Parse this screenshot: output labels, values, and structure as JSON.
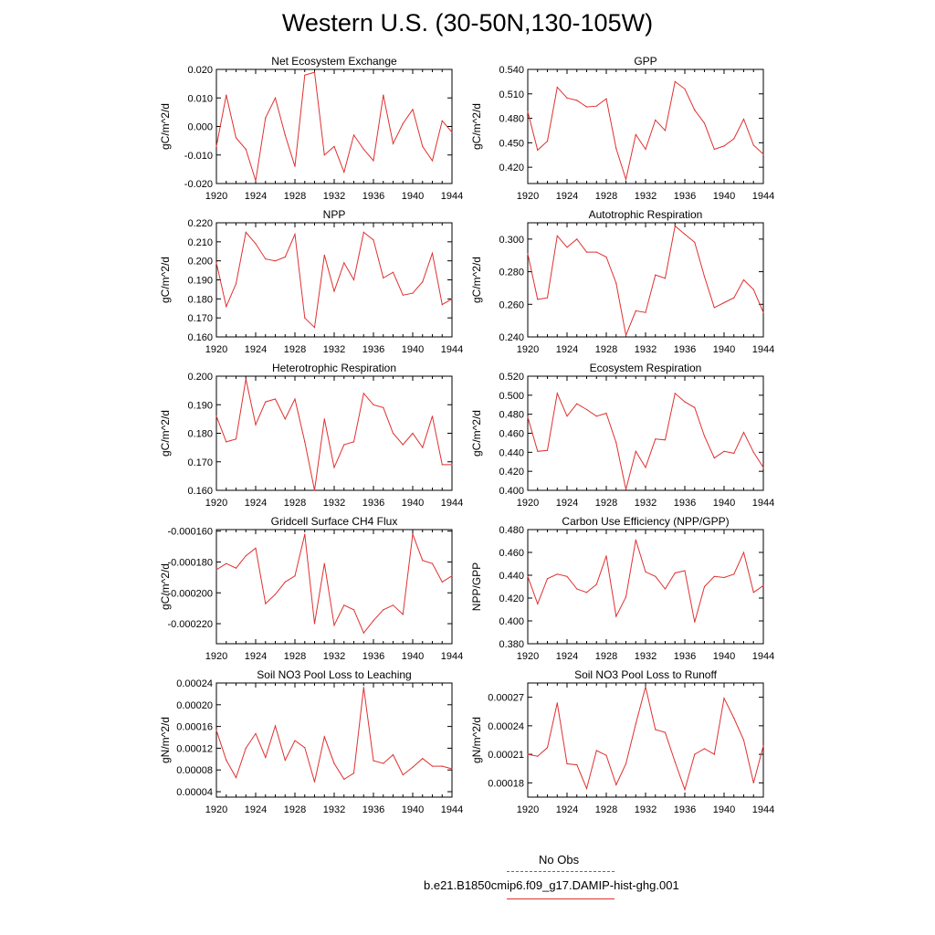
{
  "figure": {
    "title": "Western U.S. (30-50N,130-105W)"
  },
  "legend": {
    "entries": [
      {
        "label": "No Obs",
        "color": "#5a5ae0",
        "style": "dashed"
      },
      {
        "label": "b.e21.B1850cmip6.f09_g17.DAMIP-hist-ghg.001",
        "color": "#e03030",
        "style": "solid"
      }
    ]
  },
  "chart_data": [
    {
      "type": "line",
      "title": "Net Ecosystem Exchange",
      "ylabel": "gC/m^2/d",
      "xlim": [
        1920,
        1944
      ],
      "ylim": [
        -0.02,
        0.02
      ],
      "xticks": [
        "1920",
        "1924",
        "1928",
        "1932",
        "1936",
        "1940",
        "1944"
      ],
      "yticks": [
        {
          "v": 0.02,
          "t": "0.020"
        },
        {
          "v": 0.01,
          "t": "0.010"
        },
        {
          "v": 0.0,
          "t": "0.000"
        },
        {
          "v": -0.01,
          "t": "-0.010"
        },
        {
          "v": -0.02,
          "t": "-0.020"
        }
      ],
      "x": [
        1920,
        1921,
        1922,
        1923,
        1924,
        1925,
        1926,
        1927,
        1928,
        1929,
        1930,
        1931,
        1932,
        1933,
        1934,
        1935,
        1936,
        1937,
        1938,
        1939,
        1940,
        1941,
        1942,
        1943,
        1944
      ],
      "series": [
        {
          "color": "#e03030",
          "values": [
            -0.007,
            0.011,
            -0.004,
            -0.008,
            -0.019,
            0.003,
            0.01,
            -0.003,
            -0.014,
            0.018,
            0.019,
            -0.01,
            -0.007,
            -0.016,
            -0.003,
            -0.008,
            -0.012,
            0.011,
            -0.006,
            0.001,
            0.006,
            -0.007,
            -0.012,
            0.002,
            -0.002
          ]
        }
      ]
    },
    {
      "type": "line",
      "title": "GPP",
      "ylabel": "gC/m^2/d",
      "xlim": [
        1920,
        1944
      ],
      "ylim": [
        0.4,
        0.54
      ],
      "xticks": [
        "1920",
        "1924",
        "1928",
        "1932",
        "1936",
        "1940",
        "1944"
      ],
      "yticks": [
        {
          "v": 0.54,
          "t": "0.540"
        },
        {
          "v": 0.51,
          "t": "0.510"
        },
        {
          "v": 0.48,
          "t": "0.480"
        },
        {
          "v": 0.45,
          "t": "0.450"
        },
        {
          "v": 0.42,
          "t": "0.420"
        }
      ],
      "x": [
        1920,
        1921,
        1922,
        1923,
        1924,
        1925,
        1926,
        1927,
        1928,
        1929,
        1930,
        1931,
        1932,
        1933,
        1934,
        1935,
        1936,
        1937,
        1938,
        1939,
        1940,
        1941,
        1942,
        1943,
        1944
      ],
      "series": [
        {
          "color": "#e03030",
          "values": [
            0.488,
            0.441,
            0.452,
            0.518,
            0.505,
            0.502,
            0.494,
            0.495,
            0.504,
            0.443,
            0.405,
            0.46,
            0.442,
            0.478,
            0.465,
            0.525,
            0.516,
            0.49,
            0.474,
            0.442,
            0.446,
            0.455,
            0.479,
            0.447,
            0.436
          ]
        }
      ]
    },
    {
      "type": "line",
      "title": "NPP",
      "ylabel": "gC/m^2/d",
      "xlim": [
        1920,
        1944
      ],
      "ylim": [
        0.16,
        0.22
      ],
      "xticks": [
        "1920",
        "1924",
        "1928",
        "1932",
        "1936",
        "1940",
        "1944"
      ],
      "yticks": [
        {
          "v": 0.22,
          "t": "0.220"
        },
        {
          "v": 0.21,
          "t": "0.210"
        },
        {
          "v": 0.2,
          "t": "0.200"
        },
        {
          "v": 0.19,
          "t": "0.190"
        },
        {
          "v": 0.18,
          "t": "0.180"
        },
        {
          "v": 0.17,
          "t": "0.170"
        },
        {
          "v": 0.16,
          "t": "0.160"
        }
      ],
      "x": [
        1920,
        1921,
        1922,
        1923,
        1924,
        1925,
        1926,
        1927,
        1928,
        1929,
        1930,
        1931,
        1932,
        1933,
        1934,
        1935,
        1936,
        1937,
        1938,
        1939,
        1940,
        1941,
        1942,
        1943,
        1944
      ],
      "series": [
        {
          "color": "#e03030",
          "values": [
            0.199,
            0.176,
            0.188,
            0.215,
            0.209,
            0.201,
            0.2,
            0.202,
            0.214,
            0.17,
            0.165,
            0.203,
            0.184,
            0.199,
            0.19,
            0.215,
            0.211,
            0.191,
            0.194,
            0.182,
            0.183,
            0.189,
            0.204,
            0.177,
            0.18
          ]
        }
      ]
    },
    {
      "type": "line",
      "title": "Autotrophic Respiration",
      "ylabel": "gC/m^2/d",
      "xlim": [
        1920,
        1944
      ],
      "ylim": [
        0.24,
        0.31
      ],
      "xticks": [
        "1920",
        "1924",
        "1928",
        "1932",
        "1936",
        "1940",
        "1944"
      ],
      "yticks": [
        {
          "v": 0.3,
          "t": "0.300"
        },
        {
          "v": 0.28,
          "t": "0.280"
        },
        {
          "v": 0.26,
          "t": "0.260"
        },
        {
          "v": 0.24,
          "t": "0.240"
        }
      ],
      "x": [
        1920,
        1921,
        1922,
        1923,
        1924,
        1925,
        1926,
        1927,
        1928,
        1929,
        1930,
        1931,
        1932,
        1933,
        1934,
        1935,
        1936,
        1937,
        1938,
        1939,
        1940,
        1941,
        1942,
        1943,
        1944
      ],
      "series": [
        {
          "color": "#e03030",
          "values": [
            0.291,
            0.263,
            0.264,
            0.302,
            0.295,
            0.3,
            0.292,
            0.292,
            0.289,
            0.273,
            0.241,
            0.256,
            0.255,
            0.278,
            0.276,
            0.308,
            0.303,
            0.298,
            0.277,
            0.258,
            0.261,
            0.264,
            0.275,
            0.269,
            0.255
          ]
        }
      ]
    },
    {
      "type": "line",
      "title": "Heterotrophic Respiration",
      "ylabel": "gC/m^2/d",
      "xlim": [
        1920,
        1944
      ],
      "ylim": [
        0.16,
        0.2
      ],
      "xticks": [
        "1920",
        "1924",
        "1928",
        "1932",
        "1936",
        "1940",
        "1944"
      ],
      "yticks": [
        {
          "v": 0.2,
          "t": "0.200"
        },
        {
          "v": 0.19,
          "t": "0.190"
        },
        {
          "v": 0.18,
          "t": "0.180"
        },
        {
          "v": 0.17,
          "t": "0.170"
        },
        {
          "v": 0.16,
          "t": "0.160"
        }
      ],
      "x": [
        1920,
        1921,
        1922,
        1923,
        1924,
        1925,
        1926,
        1927,
        1928,
        1929,
        1930,
        1931,
        1932,
        1933,
        1934,
        1935,
        1936,
        1937,
        1938,
        1939,
        1940,
        1941,
        1942,
        1943,
        1944
      ],
      "series": [
        {
          "color": "#e03030",
          "values": [
            0.186,
            0.177,
            0.178,
            0.199,
            0.183,
            0.191,
            0.192,
            0.185,
            0.192,
            0.177,
            0.16,
            0.185,
            0.168,
            0.176,
            0.177,
            0.194,
            0.19,
            0.189,
            0.18,
            0.176,
            0.18,
            0.175,
            0.186,
            0.169,
            0.169
          ]
        }
      ]
    },
    {
      "type": "line",
      "title": "Ecosystem Respiration",
      "ylabel": "gC/m^2/d",
      "xlim": [
        1920,
        1944
      ],
      "ylim": [
        0.4,
        0.52
      ],
      "xticks": [
        "1920",
        "1924",
        "1928",
        "1932",
        "1936",
        "1940",
        "1944"
      ],
      "yticks": [
        {
          "v": 0.52,
          "t": "0.520"
        },
        {
          "v": 0.5,
          "t": "0.500"
        },
        {
          "v": 0.48,
          "t": "0.480"
        },
        {
          "v": 0.46,
          "t": "0.460"
        },
        {
          "v": 0.44,
          "t": "0.440"
        },
        {
          "v": 0.42,
          "t": "0.420"
        },
        {
          "v": 0.4,
          "t": "0.400"
        }
      ],
      "x": [
        1920,
        1921,
        1922,
        1923,
        1924,
        1925,
        1926,
        1927,
        1928,
        1929,
        1930,
        1931,
        1932,
        1933,
        1934,
        1935,
        1936,
        1937,
        1938,
        1939,
        1940,
        1941,
        1942,
        1943,
        1944
      ],
      "series": [
        {
          "color": "#e03030",
          "values": [
            0.477,
            0.441,
            0.442,
            0.502,
            0.478,
            0.491,
            0.485,
            0.478,
            0.481,
            0.45,
            0.401,
            0.441,
            0.424,
            0.454,
            0.453,
            0.502,
            0.493,
            0.487,
            0.457,
            0.434,
            0.441,
            0.439,
            0.461,
            0.44,
            0.424
          ]
        }
      ]
    },
    {
      "type": "line",
      "title": "Gridcell Surface CH4 Flux",
      "ylabel": "gC/m^2/d",
      "xlim": [
        1920,
        1944
      ],
      "ylim": [
        -0.000233,
        -0.000159
      ],
      "xticks": [
        "1920",
        "1924",
        "1928",
        "1932",
        "1936",
        "1940",
        "1944"
      ],
      "yticks": [
        {
          "v": -0.00016,
          "t": "-0.000160"
        },
        {
          "v": -0.00018,
          "t": "-0.000180"
        },
        {
          "v": -0.0002,
          "t": "-0.000200"
        },
        {
          "v": -0.00022,
          "t": "-0.000220"
        }
      ],
      "x": [
        1920,
        1921,
        1922,
        1923,
        1924,
        1925,
        1926,
        1927,
        1928,
        1929,
        1930,
        1931,
        1932,
        1933,
        1934,
        1935,
        1936,
        1937,
        1938,
        1939,
        1940,
        1941,
        1942,
        1943,
        1944
      ],
      "series": [
        {
          "color": "#e03030",
          "values": [
            -0.000185,
            -0.000181,
            -0.000184,
            -0.000176,
            -0.000171,
            -0.000207,
            -0.000201,
            -0.000193,
            -0.000189,
            -0.000162,
            -0.00022,
            -0.000181,
            -0.000221,
            -0.000208,
            -0.000211,
            -0.000226,
            -0.000218,
            -0.000211,
            -0.000208,
            -0.000214,
            -0.000162,
            -0.000179,
            -0.000181,
            -0.000193,
            -0.000189
          ]
        }
      ]
    },
    {
      "type": "line",
      "title": "Carbon Use Efficiency (NPP/GPP)",
      "ylabel": "NPP/GPP",
      "xlim": [
        1920,
        1944
      ],
      "ylim": [
        0.38,
        0.48
      ],
      "xticks": [
        "1920",
        "1924",
        "1928",
        "1932",
        "1936",
        "1940",
        "1944"
      ],
      "yticks": [
        {
          "v": 0.48,
          "t": "0.480"
        },
        {
          "v": 0.46,
          "t": "0.460"
        },
        {
          "v": 0.44,
          "t": "0.440"
        },
        {
          "v": 0.42,
          "t": "0.420"
        },
        {
          "v": 0.4,
          "t": "0.400"
        },
        {
          "v": 0.38,
          "t": "0.380"
        }
      ],
      "x": [
        1920,
        1921,
        1922,
        1923,
        1924,
        1925,
        1926,
        1927,
        1928,
        1929,
        1930,
        1931,
        1932,
        1933,
        1934,
        1935,
        1936,
        1937,
        1938,
        1939,
        1940,
        1941,
        1942,
        1943,
        1944
      ],
      "series": [
        {
          "color": "#e03030",
          "values": [
            0.439,
            0.415,
            0.437,
            0.441,
            0.439,
            0.428,
            0.425,
            0.432,
            0.457,
            0.404,
            0.421,
            0.471,
            0.443,
            0.439,
            0.428,
            0.442,
            0.444,
            0.399,
            0.43,
            0.439,
            0.438,
            0.441,
            0.46,
            0.425,
            0.431
          ]
        }
      ]
    },
    {
      "type": "line",
      "title": "Soil NO3 Pool Loss to Leaching",
      "ylabel": "gN/m^2/d",
      "xlim": [
        1920,
        1944
      ],
      "ylim": [
        3e-05,
        0.00024
      ],
      "xticks": [
        "1920",
        "1924",
        "1928",
        "1932",
        "1936",
        "1940",
        "1944"
      ],
      "yticks": [
        {
          "v": 0.00024,
          "t": "0.00024"
        },
        {
          "v": 0.0002,
          "t": "0.00020"
        },
        {
          "v": 0.00016,
          "t": "0.00016"
        },
        {
          "v": 0.00012,
          "t": "0.00012"
        },
        {
          "v": 8e-05,
          "t": "0.00008"
        },
        {
          "v": 4e-05,
          "t": "0.00004"
        }
      ],
      "x": [
        1920,
        1921,
        1922,
        1923,
        1924,
        1925,
        1926,
        1927,
        1928,
        1929,
        1930,
        1931,
        1932,
        1933,
        1934,
        1935,
        1936,
        1937,
        1938,
        1939,
        1940,
        1941,
        1942,
        1943,
        1944
      ],
      "series": [
        {
          "color": "#e03030",
          "values": [
            0.000153,
            9.8e-05,
            6.6e-05,
            0.00012,
            0.000147,
            0.000103,
            0.000161,
            9.8e-05,
            0.000134,
            0.000121,
            5.8e-05,
            0.000141,
            9.2e-05,
            6.3e-05,
            7.4e-05,
            0.000232,
            9.7e-05,
            9.2e-05,
            0.000108,
            7.1e-05,
            8.5e-05,
            0.000101,
            8.7e-05,
            8.7e-05,
            8.2e-05
          ]
        }
      ]
    },
    {
      "type": "line",
      "title": "Soil NO3 Pool Loss to Runoff",
      "ylabel": "gN/m^2/d",
      "xlim": [
        1920,
        1944
      ],
      "ylim": [
        0.000165,
        0.000285
      ],
      "xticks": [
        "1920",
        "1924",
        "1928",
        "1932",
        "1936",
        "1940",
        "1944"
      ],
      "yticks": [
        {
          "v": 0.00027,
          "t": "0.00027"
        },
        {
          "v": 0.00024,
          "t": "0.00024"
        },
        {
          "v": 0.00021,
          "t": "0.00021"
        },
        {
          "v": 0.00018,
          "t": "0.00018"
        }
      ],
      "x": [
        1920,
        1921,
        1922,
        1923,
        1924,
        1925,
        1926,
        1927,
        1928,
        1929,
        1930,
        1931,
        1932,
        1933,
        1934,
        1935,
        1936,
        1937,
        1938,
        1939,
        1940,
        1941,
        1942,
        1943,
        1944
      ],
      "series": [
        {
          "color": "#e03030",
          "values": [
            0.00021,
            0.000208,
            0.000217,
            0.000264,
            0.0002,
            0.000199,
            0.000174,
            0.000214,
            0.000209,
            0.000178,
            0.0002,
            0.000242,
            0.000281,
            0.000236,
            0.000233,
            0.000202,
            0.000173,
            0.00021,
            0.000216,
            0.00021,
            0.000269,
            0.000248,
            0.000225,
            0.00018,
            0.000219
          ]
        }
      ]
    }
  ]
}
